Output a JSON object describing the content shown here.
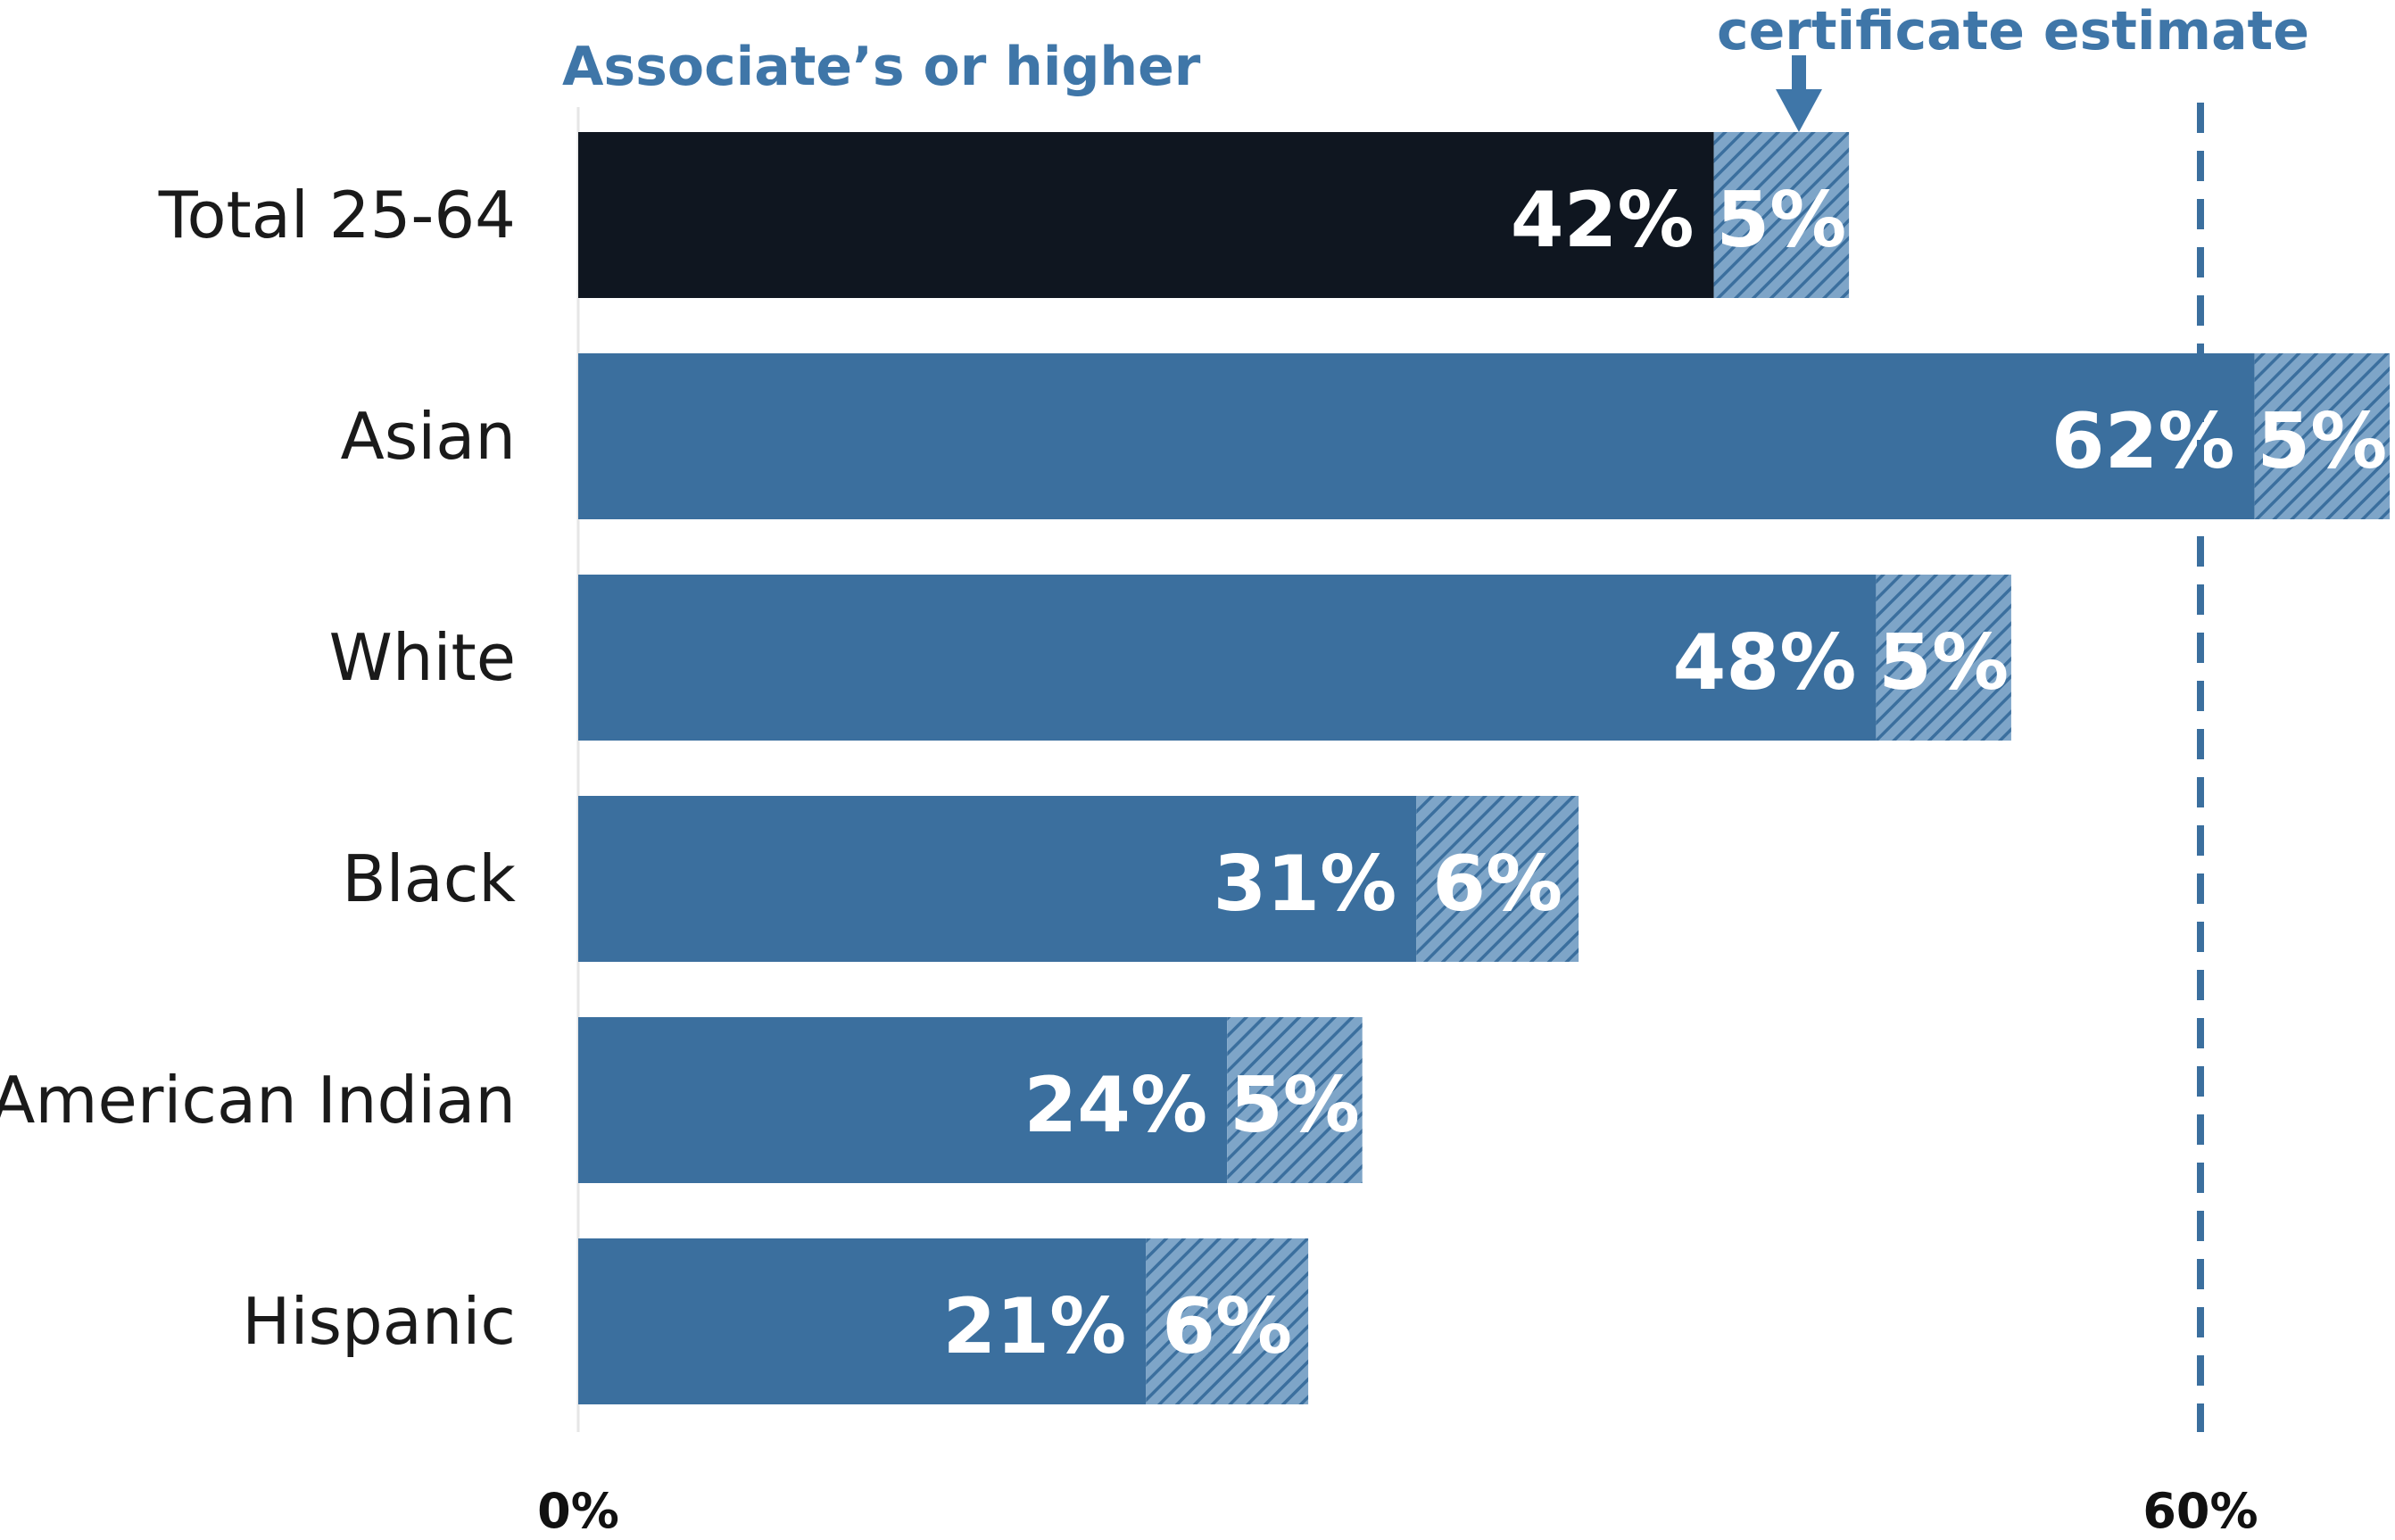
{
  "chart_data": {
    "type": "bar",
    "orientation": "horizontal",
    "stacked": true,
    "categories": [
      "Total 25-64",
      "Asian",
      "White",
      "Black",
      "American Indian",
      "Hispanic"
    ],
    "series": [
      {
        "values": [
          42,
          62,
          48,
          31,
          24,
          21
        ],
        "labels": [
          "42%",
          "62%",
          "48%",
          "31%",
          "24%",
          "21%"
        ]
      },
      {
        "values": [
          5,
          5,
          5,
          6,
          5,
          6
        ],
        "labels": [
          "5%",
          "5%",
          "5%",
          "6%",
          "5%",
          "6%"
        ]
      }
    ],
    "annotations": {
      "associates": "Associate’s or higher",
      "certificate": "certificate estimate"
    },
    "reference_line": {
      "value": 60,
      "style": "dashed"
    },
    "xlim": [
      0,
      67
    ],
    "xticks": [
      0,
      60
    ],
    "xtick_labels": [
      "0%",
      "60%"
    ],
    "colors": {
      "total": "#0f1620",
      "group": "#3b6f9e",
      "hatch_bg": "#7ea5c8",
      "hatch_line": "#3b6f9e",
      "annotation": "#3f76a8",
      "refline": "#3b6f9e"
    }
  }
}
